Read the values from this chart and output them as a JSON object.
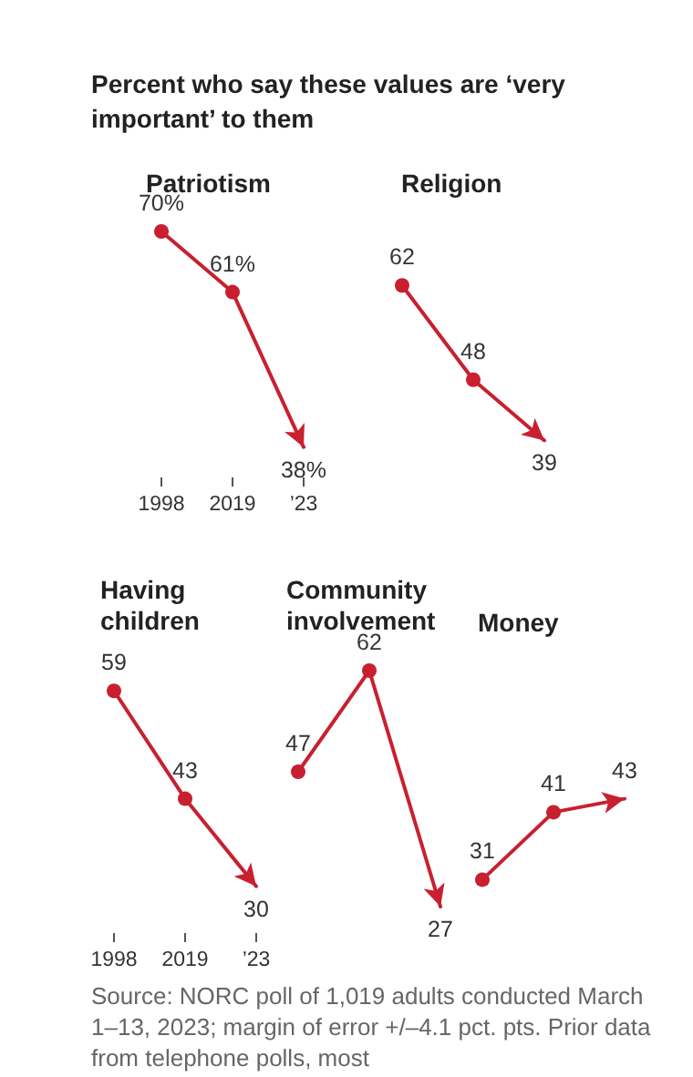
{
  "chart_data": [
    {
      "type": "other",
      "title": "Percent who say these values are ‘very important’ to them"
    },
    {
      "type": "line",
      "title": "Patriotism",
      "categories": [
        "1998",
        "2019",
        "’23"
      ],
      "values": [
        70,
        61,
        38
      ],
      "value_labels": [
        "70%",
        "61%",
        "38%"
      ],
      "color": "#c8202f",
      "tick_labels": "x",
      "marker": "circle",
      "line_style": "solid",
      "grid": false
    },
    {
      "type": "line",
      "title": "Religion",
      "categories": [
        null,
        null,
        null
      ],
      "values": [
        62,
        48,
        39
      ],
      "data_labels": true,
      "color": "#c8202f",
      "tick_labels": false,
      "marker": "circle",
      "line_style": "solid",
      "grid": false
    },
    {
      "type": "line",
      "title": "Having children",
      "categories": [
        "1998",
        "2019",
        "’23"
      ],
      "values": [
        59,
        43,
        30
      ],
      "data_labels": true,
      "color": "#c8202f",
      "tick_labels": "x",
      "marker": "circle",
      "line_style": "solid",
      "grid": false
    },
    {
      "type": "line",
      "title": "Community involvement",
      "categories": [
        null,
        null,
        null
      ],
      "values": [
        47,
        62,
        27
      ],
      "data_labels": true,
      "color": "#c8202f",
      "tick_labels": false,
      "marker": "circle",
      "line_style": "solid",
      "grid": false
    },
    {
      "type": "line",
      "title": "Money",
      "categories": [
        null,
        null,
        null
      ],
      "values": [
        31,
        41,
        43
      ],
      "data_labels": true,
      "color": "#c8202f",
      "tick_labels": false,
      "marker": "circle",
      "line_style": "solid",
      "grid": false
    },
    {
      "type": "other",
      "annotations": [
        "Source: NORC poll of 1,019 adults conducted March 1–13, 2023; margin of error +/–4.1 pct. pts. Prior data from telephone polls, most"
      ]
    }
  ]
}
